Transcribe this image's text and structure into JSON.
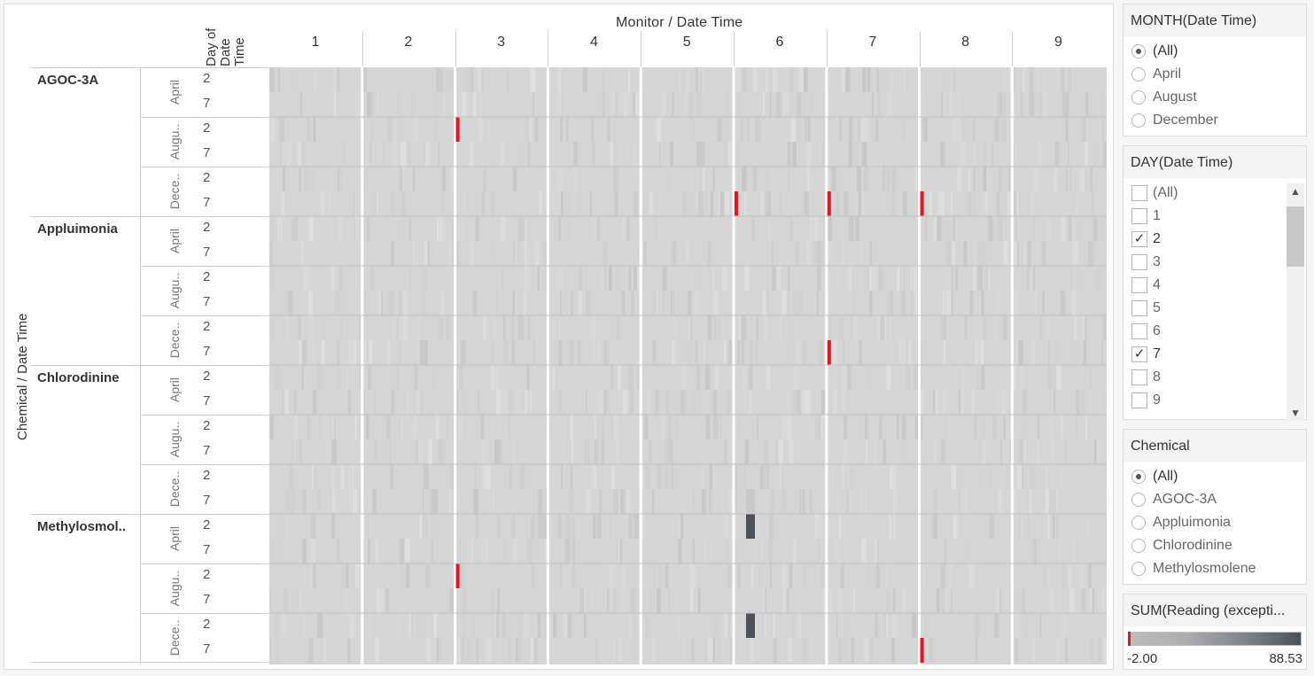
{
  "viz": {
    "column_title": "Monitor / Date Time",
    "row_title": "Chemical / Date Time",
    "day_header": [
      "Day of",
      "Date",
      "Time"
    ],
    "monitors": [
      "1",
      "2",
      "3",
      "4",
      "5",
      "6",
      "7",
      "8",
      "9"
    ],
    "chemicals": [
      "AGOC-3A",
      "Appluimonia",
      "Chlorodinine",
      "Methylosmol.."
    ],
    "months": [
      "April",
      "Augu..",
      "Dece.."
    ],
    "days": [
      "2",
      "7"
    ]
  },
  "chart_data": {
    "type": "heatmap",
    "title": "",
    "x_axis": "Monitor / Date Time",
    "y_axis": "Chemical / Date Time",
    "x_categories": [
      "1",
      "2",
      "3",
      "4",
      "5",
      "6",
      "7",
      "8",
      "9"
    ],
    "y_groups": [
      "AGOC-3A",
      "Appluimonia",
      "Chlorodinine",
      "Methylosmol.."
    ],
    "y_subgroups": [
      "April",
      "Augu..",
      "Dece.."
    ],
    "y_days": [
      "2",
      "7"
    ],
    "color_measure": "SUM(Reading (excepti...",
    "color_range": [
      -2.0,
      88.53
    ],
    "colors": {
      "low": "#bdbdbd",
      "high": "#4a525c",
      "negative": "#e8141b",
      "base": "#d5d5d5"
    },
    "highlights": [
      {
        "chemical": "AGOC-3A",
        "month": "Augu..",
        "day": "2",
        "monitor": "3",
        "kind": "negative"
      },
      {
        "chemical": "AGOC-3A",
        "month": "Dece..",
        "day": "7",
        "monitor": "6",
        "kind": "negative"
      },
      {
        "chemical": "AGOC-3A",
        "month": "Dece..",
        "day": "7",
        "monitor": "7",
        "kind": "negative"
      },
      {
        "chemical": "AGOC-3A",
        "month": "Dece..",
        "day": "7",
        "monitor": "8",
        "kind": "negative"
      },
      {
        "chemical": "Appluimonia",
        "month": "Dece..",
        "day": "7",
        "monitor": "7",
        "kind": "negative"
      },
      {
        "chemical": "Methylosmol..",
        "month": "Augu..",
        "day": "2",
        "monitor": "3",
        "kind": "negative"
      },
      {
        "chemical": "Methylosmol..",
        "month": "Dece..",
        "day": "7",
        "monitor": "8",
        "kind": "negative"
      },
      {
        "chemical": "Methylosmol..",
        "month": "April",
        "day": "2",
        "monitor": "6",
        "kind": "high"
      },
      {
        "chemical": "Methylosmol..",
        "month": "Dece..",
        "day": "2",
        "monitor": "6",
        "kind": "high"
      }
    ]
  },
  "filters": {
    "month": {
      "title": "MONTH(Date Time)",
      "options": [
        "(All)",
        "April",
        "August",
        "December"
      ],
      "selected": "(All)"
    },
    "day": {
      "title": "DAY(Date Time)",
      "options": [
        "(All)",
        "1",
        "2",
        "3",
        "4",
        "5",
        "6",
        "7",
        "8",
        "9"
      ],
      "checked": [
        "2",
        "7"
      ]
    },
    "chemical": {
      "title": "Chemical",
      "options": [
        "(All)",
        "AGOC-3A",
        "Appluimonia",
        "Chlorodinine",
        "Methylosmolene"
      ],
      "selected": "(All)"
    },
    "legend": {
      "title": "SUM(Reading (excepti...",
      "min_label": "-2.00",
      "max_label": "88.53"
    }
  },
  "icons": {
    "scroll_up": "▲",
    "scroll_down": "▼",
    "check": "✓"
  }
}
